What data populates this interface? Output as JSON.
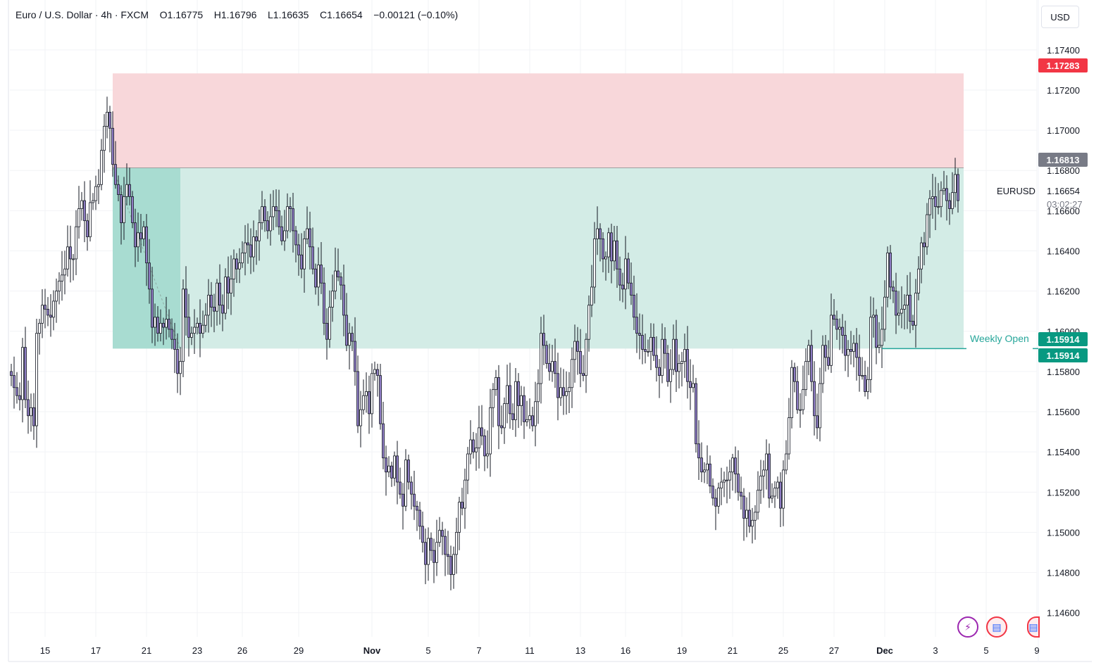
{
  "header": {
    "symbol_name": "Euro / U.S. Dollar",
    "interval": "4h",
    "exchange": "FXCM",
    "open": "O1.16775",
    "high": "H1.16796",
    "low": "L1.16635",
    "close": "C1.16654",
    "change": "−0.00121 (−0.10%)"
  },
  "currency_button": "USD",
  "price_tags": {
    "stop": "1.17283",
    "entry": "1.16813",
    "weekly_open": "1.15914",
    "target": "1.15914"
  },
  "symbol_label": "EURUSD",
  "last_price": "1.16654",
  "countdown": "03:02:27",
  "weekly_open_label": "Weekly Open",
  "colors": {
    "up": "#ffffff",
    "down": "#8e7cc3",
    "wick": "#131722",
    "stop_zone": "#f8d7da",
    "target_zone": "#d3ece6",
    "target_zone_dark": "#a8dcd1",
    "stop_tag": "#f23645",
    "entry_tag": "#787b86",
    "target_tag": "#089981",
    "weekly_line": "#26a69a"
  },
  "icons": [
    "lightning-icon",
    "us-flag-icon",
    "partial-flag-icon"
  ],
  "chart_data": {
    "type": "candlestick",
    "symbol": "EURUSD",
    "ylim": [
      1.1455,
      1.1762
    ],
    "y_ticks": [
      "1.14600",
      "1.14800",
      "1.15000",
      "1.15200",
      "1.15400",
      "1.15600",
      "1.15800",
      "1.16000",
      "1.16200",
      "1.16400",
      "1.16600",
      "1.16800",
      "1.17000",
      "1.17200",
      "1.17400"
    ],
    "x_ticks": [
      {
        "label": "15",
        "i": 12
      },
      {
        "label": "17",
        "i": 30
      },
      {
        "label": "21",
        "i": 48
      },
      {
        "label": "23",
        "i": 66
      },
      {
        "label": "26",
        "i": 82
      },
      {
        "label": "29",
        "i": 102
      },
      {
        "label": "Nov",
        "i": 128
      },
      {
        "label": "5",
        "i": 148
      },
      {
        "label": "7",
        "i": 166
      },
      {
        "label": "11",
        "i": 184
      },
      {
        "label": "13",
        "i": 202
      },
      {
        "label": "16",
        "i": 218
      },
      {
        "label": "19",
        "i": 238
      },
      {
        "label": "21",
        "i": 256
      },
      {
        "label": "25",
        "i": 274
      },
      {
        "label": "27",
        "i": 292
      },
      {
        "label": "Dec",
        "i": 310
      },
      {
        "label": "3",
        "i": 328
      },
      {
        "label": "5",
        "i": 346
      },
      {
        "label": "9",
        "i": 364
      }
    ],
    "position": {
      "type": "short",
      "entry": 1.16813,
      "stop": 1.17283,
      "target": 1.15914,
      "start_i": 36,
      "end_i": 338,
      "dark_end_i": 60
    },
    "weekly_open": {
      "price": 1.15914,
      "start_i": 309,
      "end_i": 339
    },
    "closes": [
      1.1578,
      1.1572,
      1.1568,
      1.1566,
      1.1592,
      1.1566,
      1.1558,
      1.1562,
      1.1553,
      1.1599,
      1.1604,
      1.1613,
      1.1611,
      1.1608,
      1.1607,
      1.1615,
      1.162,
      1.1625,
      1.1628,
      1.1631,
      1.1642,
      1.1636,
      1.1636,
      1.1652,
      1.1661,
      1.1665,
      1.1655,
      1.1647,
      1.1664,
      1.1665,
      1.1672,
      1.1673,
      1.169,
      1.1702,
      1.1709,
      1.1701,
      1.1683,
      1.1673,
      1.1668,
      1.1654,
      1.1667,
      1.1673,
      1.1667,
      1.1654,
      1.1642,
      1.1649,
      1.1646,
      1.1652,
      1.1634,
      1.1621,
      1.1602,
      1.1607,
      1.1599,
      1.1604,
      1.1602,
      1.1606,
      1.1601,
      1.1596,
      1.1591,
      1.1579,
      1.1585,
      1.1621,
      1.1607,
      1.1597,
      1.1599,
      1.1602,
      1.1604,
      1.1599,
      1.1603,
      1.1608,
      1.1618,
      1.1612,
      1.161,
      1.1624,
      1.1613,
      1.1609,
      1.1627,
      1.1619,
      1.1626,
      1.1636,
      1.1631,
      1.1634,
      1.1639,
      1.1644,
      1.1643,
      1.1637,
      1.1647,
      1.1645,
      1.1654,
      1.1662,
      1.1655,
      1.165,
      1.1657,
      1.1662,
      1.166,
      1.1652,
      1.1645,
      1.165,
      1.1662,
      1.1661,
      1.165,
      1.1643,
      1.1638,
      1.1631,
      1.1646,
      1.1651,
      1.1642,
      1.1631,
      1.1622,
      1.1633,
      1.1624,
      1.1604,
      1.1596,
      1.1612,
      1.162,
      1.163,
      1.1627,
      1.1623,
      1.1608,
      1.1593,
      1.1599,
      1.1595,
      1.158,
      1.1553,
      1.1561,
      1.1568,
      1.157,
      1.1559,
      1.1579,
      1.1581,
      1.1578,
      1.1554,
      1.1537,
      1.153,
      1.1533,
      1.1527,
      1.1538,
      1.1525,
      1.1519,
      1.1513,
      1.1536,
      1.1525,
      1.1519,
      1.1513,
      1.1511,
      1.1503,
      1.1495,
      1.1484,
      1.1497,
      1.1491,
      1.1485,
      1.1495,
      1.1501,
      1.1498,
      1.1489,
      1.1488,
      1.1479,
      1.1489,
      1.15,
      1.1515,
      1.1512,
      1.1526,
      1.1539,
      1.1546,
      1.154,
      1.1542,
      1.1552,
      1.1548,
      1.1538,
      1.1539,
      1.1562,
      1.1571,
      1.1577,
      1.1553,
      1.1552,
      1.1564,
      1.1573,
      1.1559,
      1.1556,
      1.1575,
      1.1563,
      1.1568,
      1.1555,
      1.1556,
      1.1558,
      1.1553,
      1.1565,
      1.1574,
      1.1599,
      1.1593,
      1.1584,
      1.158,
      1.1585,
      1.1579,
      1.1567,
      1.1572,
      1.1568,
      1.157,
      1.1572,
      1.1586,
      1.1595,
      1.159,
      1.1579,
      1.1578,
      1.1596,
      1.1613,
      1.1622,
      1.1646,
      1.1651,
      1.1646,
      1.1636,
      1.1637,
      1.1649,
      1.1635,
      1.1645,
      1.1631,
      1.1623,
      1.1621,
      1.1636,
      1.1624,
      1.1618,
      1.1607,
      1.1599,
      1.1598,
      1.1591,
      1.159,
      1.159,
      1.1597,
      1.1588,
      1.1582,
      1.1578,
      1.1596,
      1.1589,
      1.1575,
      1.1581,
      1.1596,
      1.158,
      1.1584,
      1.1585,
      1.1591,
      1.1575,
      1.1572,
      1.1574,
      1.1544,
      1.1537,
      1.153,
      1.1531,
      1.1534,
      1.1523,
      1.1517,
      1.1513,
      1.1522,
      1.1525,
      1.1526,
      1.1526,
      1.153,
      1.1537,
      1.1529,
      1.152,
      1.1518,
      1.1507,
      1.1511,
      1.1503,
      1.1506,
      1.151,
      1.1521,
      1.1528,
      1.1531,
      1.1539,
      1.1517,
      1.1518,
      1.1522,
      1.1525,
      1.1512,
      1.1531,
      1.1539,
      1.1557,
      1.1582,
      1.1575,
      1.1561,
      1.1561,
      1.1571,
      1.1585,
      1.1593,
      1.1575,
      1.1558,
      1.1552,
      1.1574,
      1.1593,
      1.1587,
      1.1583,
      1.1608,
      1.1606,
      1.1601,
      1.1602,
      1.1598,
      1.1588,
      1.1591,
      1.159,
      1.1594,
      1.1587,
      1.1578,
      1.1578,
      1.157,
      1.1576,
      1.1607,
      1.1608,
      1.1592,
      1.1593,
      1.1601,
      1.1617,
      1.1639,
      1.1622,
      1.162,
      1.1608,
      1.1609,
      1.1611,
      1.1613,
      1.1618,
      1.1605,
      1.1603,
      1.1619,
      1.1631,
      1.1644,
      1.1642,
      1.1658,
      1.1666,
      1.1667,
      1.1662,
      1.1662,
      1.167,
      1.1671,
      1.1665,
      1.1661,
      1.1669,
      1.1678,
      1.1665
    ]
  }
}
